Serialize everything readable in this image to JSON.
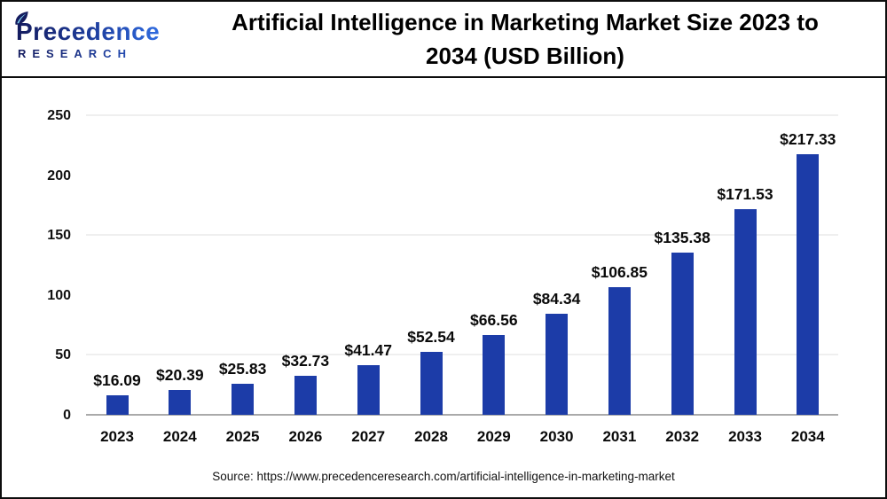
{
  "header": {
    "logo": {
      "brand": "Precedence",
      "sub": "RESEARCH"
    },
    "title_line1": "Artificial Intelligence in Marketing Market Size 2023 to",
    "title_line2": "2034 (USD Billion)"
  },
  "chart_data": {
    "type": "bar",
    "title": "Artificial Intelligence in Marketing Market Size 2023 to 2034 (USD Billion)",
    "categories": [
      "2023",
      "2024",
      "2025",
      "2026",
      "2027",
      "2028",
      "2029",
      "2030",
      "2031",
      "2032",
      "2033",
      "2034"
    ],
    "values": [
      16.09,
      20.39,
      25.83,
      32.73,
      41.47,
      52.54,
      66.56,
      84.34,
      106.85,
      135.38,
      171.53,
      217.33
    ],
    "value_labels": [
      "$16.09",
      "$20.39",
      "$25.83",
      "$32.73",
      "$41.47",
      "$52.54",
      "$66.56",
      "$84.34",
      "$106.85",
      "$135.38",
      "$171.53",
      "$217.33"
    ],
    "xlabel": "",
    "ylabel": "",
    "ylim": [
      0,
      250
    ],
    "yticks": [
      0,
      50,
      100,
      150,
      200,
      250
    ],
    "gridlines_at": [
      50,
      150,
      250
    ],
    "legend": "none",
    "bar_color": "#1c3ca8"
  },
  "footer": {
    "source": "Source: https://www.precedenceresearch.com/artificial-intelligence-in-marketing-market"
  },
  "colors": {
    "bar": "#1c3ca8",
    "baseline": "#aaaaaa",
    "gridline": "#efefef",
    "border": "#0d0d0d",
    "logo_navy": "#141b5e",
    "logo_blue": "#2f6be0"
  }
}
